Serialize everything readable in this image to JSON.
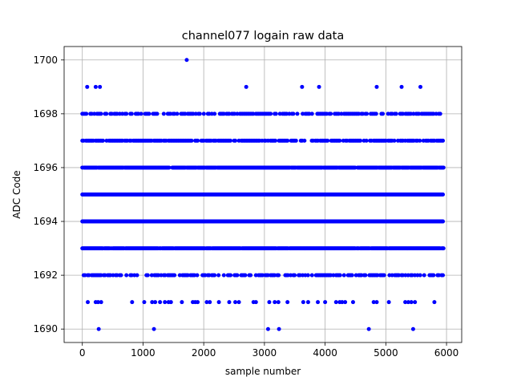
{
  "chart_data": {
    "type": "scatter",
    "title": "channel077 logain raw data",
    "xlabel": "sample number",
    "ylabel": "ADC Code",
    "xlim": [
      -300,
      6250
    ],
    "ylim": [
      1689.5,
      1700.5
    ],
    "xticks": [
      0,
      1000,
      2000,
      3000,
      4000,
      5000,
      6000
    ],
    "yticks": [
      1690,
      1692,
      1694,
      1696,
      1698,
      1700
    ],
    "grid": true,
    "marker_color": "#0000ff",
    "sample_range": [
      0,
      5950
    ],
    "dense_levels": [
      1693,
      1694,
      1695,
      1696,
      1697
    ],
    "medium_levels": [
      1692,
      1698
    ],
    "sparse_points": [
      {
        "x": 1720,
        "y": 1700
      },
      {
        "x": 80,
        "y": 1699
      },
      {
        "x": 220,
        "y": 1699
      },
      {
        "x": 290,
        "y": 1699
      },
      {
        "x": 2700,
        "y": 1699
      },
      {
        "x": 3620,
        "y": 1699
      },
      {
        "x": 3900,
        "y": 1699
      },
      {
        "x": 4850,
        "y": 1699
      },
      {
        "x": 5260,
        "y": 1699
      },
      {
        "x": 5570,
        "y": 1699
      },
      {
        "x": 90,
        "y": 1691
      },
      {
        "x": 220,
        "y": 1691
      },
      {
        "x": 260,
        "y": 1691
      },
      {
        "x": 310,
        "y": 1691
      },
      {
        "x": 820,
        "y": 1691
      },
      {
        "x": 1020,
        "y": 1691
      },
      {
        "x": 1150,
        "y": 1691
      },
      {
        "x": 1200,
        "y": 1691
      },
      {
        "x": 1280,
        "y": 1691
      },
      {
        "x": 1360,
        "y": 1691
      },
      {
        "x": 1420,
        "y": 1691
      },
      {
        "x": 1460,
        "y": 1691
      },
      {
        "x": 1640,
        "y": 1691
      },
      {
        "x": 1820,
        "y": 1691
      },
      {
        "x": 1860,
        "y": 1691
      },
      {
        "x": 1900,
        "y": 1691
      },
      {
        "x": 2050,
        "y": 1691
      },
      {
        "x": 2100,
        "y": 1691
      },
      {
        "x": 2250,
        "y": 1691
      },
      {
        "x": 2420,
        "y": 1691
      },
      {
        "x": 2520,
        "y": 1691
      },
      {
        "x": 2580,
        "y": 1691
      },
      {
        "x": 2820,
        "y": 1691
      },
      {
        "x": 2860,
        "y": 1691
      },
      {
        "x": 3080,
        "y": 1691
      },
      {
        "x": 3170,
        "y": 1691
      },
      {
        "x": 3230,
        "y": 1691
      },
      {
        "x": 3380,
        "y": 1691
      },
      {
        "x": 3640,
        "y": 1691
      },
      {
        "x": 3720,
        "y": 1691
      },
      {
        "x": 3880,
        "y": 1691
      },
      {
        "x": 4000,
        "y": 1691
      },
      {
        "x": 4180,
        "y": 1691
      },
      {
        "x": 4240,
        "y": 1691
      },
      {
        "x": 4280,
        "y": 1691
      },
      {
        "x": 4330,
        "y": 1691
      },
      {
        "x": 4460,
        "y": 1691
      },
      {
        "x": 4800,
        "y": 1691
      },
      {
        "x": 4850,
        "y": 1691
      },
      {
        "x": 5050,
        "y": 1691
      },
      {
        "x": 5320,
        "y": 1691
      },
      {
        "x": 5370,
        "y": 1691
      },
      {
        "x": 5420,
        "y": 1691
      },
      {
        "x": 5480,
        "y": 1691
      },
      {
        "x": 5800,
        "y": 1691
      },
      {
        "x": 270,
        "y": 1690
      },
      {
        "x": 1180,
        "y": 1690
      },
      {
        "x": 3060,
        "y": 1690
      },
      {
        "x": 3240,
        "y": 1690
      },
      {
        "x": 4720,
        "y": 1690
      },
      {
        "x": 5450,
        "y": 1690
      }
    ]
  }
}
